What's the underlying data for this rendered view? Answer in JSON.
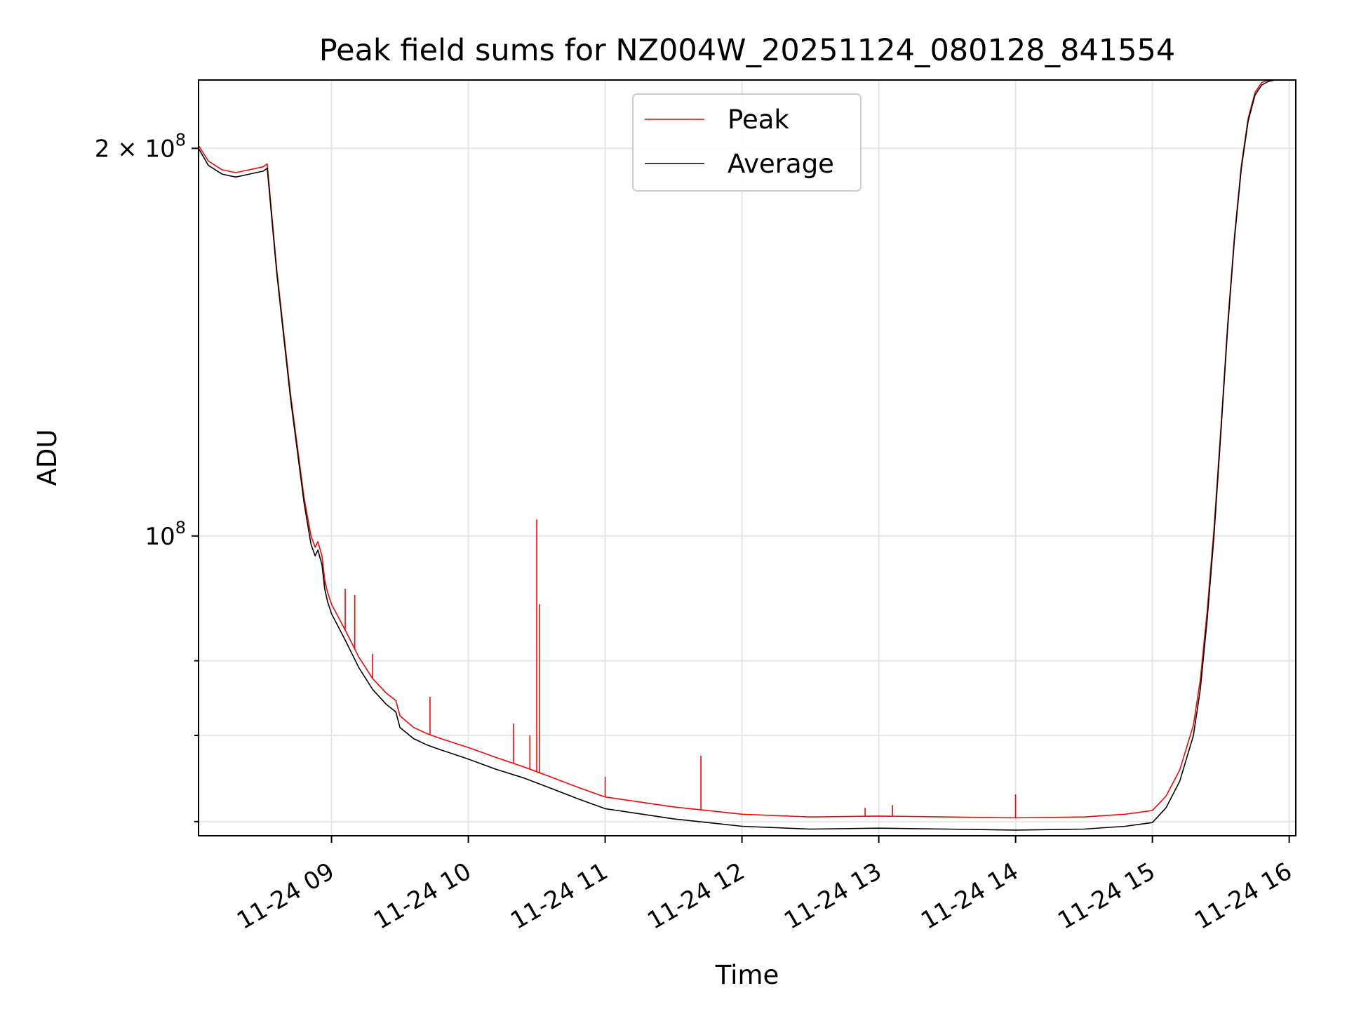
{
  "chart_data": {
    "type": "line",
    "title": "Peak field sums for NZ004W_20251124_080128_841554",
    "xlabel": "Time",
    "ylabel": "ADU",
    "yscale": "log",
    "xlim": [
      8.028,
      16.048
    ],
    "ylim": [
      58500000,
      226000000
    ],
    "x_unit": "hours since 2025-11-24 00:00",
    "xticks": [
      {
        "value": 9,
        "label": "11-24 09"
      },
      {
        "value": 10,
        "label": "11-24 10"
      },
      {
        "value": 11,
        "label": "11-24 11"
      },
      {
        "value": 12,
        "label": "11-24 12"
      },
      {
        "value": 13,
        "label": "11-24 13"
      },
      {
        "value": 14,
        "label": "11-24 14"
      },
      {
        "value": 15,
        "label": "11-24 15"
      },
      {
        "value": 16,
        "label": "11-24 16"
      }
    ],
    "yticks_major": [
      {
        "value": 100000000,
        "base": "10",
        "exp": "8",
        "prefix": ""
      },
      {
        "value": 200000000,
        "base": "10",
        "exp": "8",
        "prefix": "2 × "
      }
    ],
    "yticks_minor": [
      60000000,
      70000000,
      80000000
    ],
    "grid": true,
    "legend": {
      "position": "top-center",
      "entries": [
        {
          "name": "Peak",
          "color": "#ff0000"
        },
        {
          "name": "Average",
          "color": "#000000"
        }
      ]
    },
    "series": [
      {
        "name": "Average",
        "color": "#000000",
        "x": [
          8.028,
          8.1,
          8.2,
          8.3,
          8.4,
          8.5,
          8.53,
          8.6,
          8.7,
          8.8,
          8.85,
          8.88,
          8.9,
          8.93,
          8.95,
          8.97,
          9.0,
          9.1,
          9.2,
          9.3,
          9.4,
          9.47,
          9.5,
          9.6,
          9.7,
          9.8,
          10.0,
          10.2,
          10.4,
          10.6,
          10.8,
          11.0,
          11.5,
          12.0,
          12.5,
          13.0,
          13.5,
          14.0,
          14.5,
          14.8,
          15.0,
          15.1,
          15.2,
          15.3,
          15.35,
          15.4,
          15.45,
          15.5,
          15.55,
          15.6,
          15.65,
          15.7,
          15.75,
          15.8,
          15.85,
          15.9,
          15.95,
          16.0
        ],
        "y": [
          200000000,
          194000000,
          191000000,
          190000000,
          191000000,
          192000000,
          193000000,
          160000000,
          128000000,
          106000000,
          98500000,
          96500000,
          97500000,
          95000000,
          91000000,
          89000000,
          87000000,
          83000000,
          79000000,
          76000000,
          74000000,
          73000000,
          71000000,
          69600000,
          68800000,
          68200000,
          67100000,
          65900000,
          64900000,
          63700000,
          62500000,
          61400000,
          60300000,
          59500000,
          59200000,
          59300000,
          59200000,
          59100000,
          59200000,
          59500000,
          59900000,
          61500000,
          64500000,
          70000000,
          76000000,
          86000000,
          100000000,
          120000000,
          145000000,
          170000000,
          193000000,
          210000000,
          220000000,
          224000000,
          225500000,
          226000000,
          226000000,
          226000000
        ]
      },
      {
        "name": "Peak",
        "color": "#ff0000",
        "x": [
          8.028,
          8.1,
          8.2,
          8.3,
          8.4,
          8.5,
          8.53,
          8.6,
          8.7,
          8.8,
          8.85,
          8.88,
          8.9,
          8.93,
          8.95,
          8.97,
          9.0,
          9.1,
          9.2,
          9.3,
          9.4,
          9.47,
          9.5,
          9.6,
          9.7,
          9.8,
          10.0,
          10.2,
          10.4,
          10.6,
          10.8,
          11.0,
          11.5,
          12.0,
          12.5,
          13.0,
          13.5,
          14.0,
          14.5,
          14.8,
          15.0,
          15.1,
          15.2,
          15.3,
          15.35,
          15.4,
          15.45,
          15.5,
          15.55,
          15.6,
          15.65,
          15.7,
          15.75,
          15.8,
          15.85,
          15.9,
          15.95,
          16.0
        ],
        "y": [
          201000000,
          195500000,
          192500000,
          191500000,
          192500000,
          193500000,
          194500000,
          161000000,
          129000000,
          107000000,
          100000000,
          98000000,
          99000000,
          96500000,
          92500000,
          90500000,
          88500000,
          84500000,
          80500000,
          77500000,
          75500000,
          74500000,
          72500000,
          71000000,
          70200000,
          69600000,
          68500000,
          67300000,
          66200000,
          65000000,
          63800000,
          62700000,
          61600000,
          60800000,
          60500000,
          60600000,
          60500000,
          60400000,
          60500000,
          60800000,
          61200000,
          62800000,
          65800000,
          71300000,
          77300000,
          87300000,
          101300000,
          121000000,
          146000000,
          171000000,
          194000000,
          211000000,
          221000000,
          225000000,
          226000000,
          226000000,
          226000000,
          226000000
        ]
      }
    ],
    "peak_spikes": [
      {
        "x": 8.95,
        "y": 91500000
      },
      {
        "x": 9.1,
        "y": 91000000
      },
      {
        "x": 9.17,
        "y": 90000000
      },
      {
        "x": 9.3,
        "y": 81000000
      },
      {
        "x": 9.72,
        "y": 75000000
      },
      {
        "x": 10.33,
        "y": 71500000
      },
      {
        "x": 10.45,
        "y": 70000000
      },
      {
        "x": 10.5,
        "y": 103000000
      },
      {
        "x": 10.52,
        "y": 88500000
      },
      {
        "x": 11.0,
        "y": 65000000
      },
      {
        "x": 11.7,
        "y": 67500000
      },
      {
        "x": 12.9,
        "y": 61500000
      },
      {
        "x": 13.1,
        "y": 61800000
      },
      {
        "x": 14.0,
        "y": 63000000
      }
    ]
  }
}
